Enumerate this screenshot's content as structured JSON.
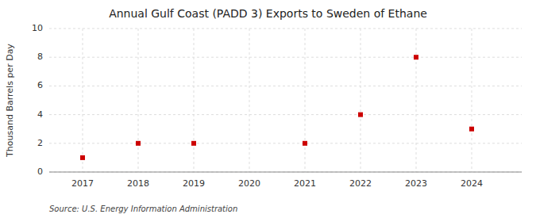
{
  "chart_data": {
    "type": "scatter",
    "title": "Annual Gulf Coast (PADD 3) Exports to Sweden of Ethane",
    "ylabel": "Thousand Barrels per Day",
    "annotations": [
      "Source: U.S. Energy Information Administration"
    ],
    "x": [
      2017,
      2018,
      2019,
      2020,
      2021,
      2022,
      2023,
      2024
    ],
    "values": [
      1,
      2,
      2,
      null,
      2,
      4,
      8,
      3
    ],
    "color": "#cc0000",
    "marker": "square",
    "xlim": [
      2016.4,
      2024.9
    ],
    "ylim": [
      0,
      10
    ],
    "xticks": [
      2017,
      2018,
      2019,
      2020,
      2021,
      2022,
      2023,
      2024
    ],
    "yticks": [
      0,
      2,
      4,
      6,
      8,
      10
    ],
    "grid": true
  }
}
